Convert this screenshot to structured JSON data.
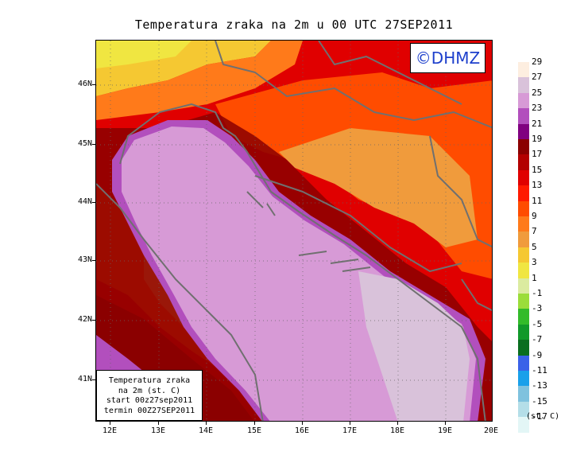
{
  "title": "Temperatura zraka na 2m u 00 UTC 27SEP2011",
  "logo_text": "©DHMZ",
  "info_box": {
    "line1": "Temperatura zraka",
    "line2": "na 2m (st. C)",
    "line3": "start 00z27sep2011",
    "line4": "termin 00Z27SEP2011"
  },
  "lat_labels": [
    "46N",
    "45N",
    "44N",
    "43N",
    "42N",
    "41N"
  ],
  "lon_labels": [
    "12E",
    "13E",
    "14E",
    "15E",
    "16E",
    "17E",
    "18E",
    "19E",
    "20E"
  ],
  "legend": {
    "unit": "(st. C)",
    "labels": [
      "29",
      "27",
      "25",
      "23",
      "21",
      "19",
      "17",
      "15",
      "13",
      "11",
      "9",
      "7",
      "5",
      "3",
      "1",
      "-1",
      "-3",
      "-5",
      "-7",
      "-9",
      "-11",
      "-13",
      "-15",
      "-17"
    ],
    "colors": [
      "#fdeee0",
      "#d9c2da",
      "#d79ad6",
      "#b24fbd",
      "#800080",
      "#8b0000",
      "#b30000",
      "#e00000",
      "#ff1a00",
      "#ff4c00",
      "#ff7a1a",
      "#f09b3c",
      "#f5c832",
      "#f0e641",
      "#dbeba0",
      "#9bdd3a",
      "#33bb2a",
      "#11992a",
      "#0a6e1f",
      "#3a62e8",
      "#19a0ea",
      "#7fc2de",
      "#b4dee8",
      "#e3f6f6"
    ]
  },
  "colors": {
    "sea_far": "#d9c2da",
    "sea_main": "#d79ad6",
    "sea_edge": "#b24fbd",
    "coast_dark": "#800080",
    "coastline": "#707070",
    "logo_blue": "#1d3fcc"
  }
}
